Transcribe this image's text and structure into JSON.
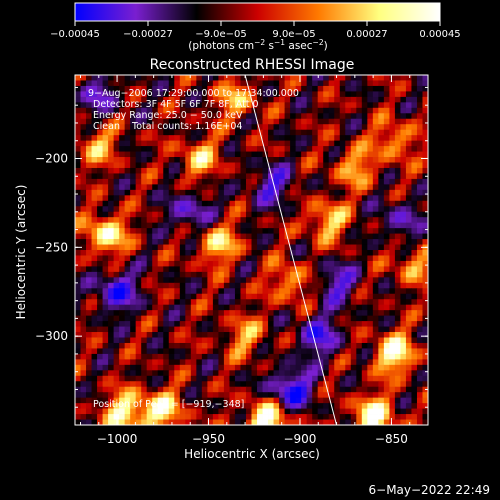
{
  "chart_data": {
    "type": "heatmap",
    "title": "Reconstructed RHESSI Image",
    "xlabel": "Heliocentric X (arcsec)",
    "ylabel": "Heliocentric Y (arcsec)",
    "xlim": [
      -1023,
      -830
    ],
    "ylim": [
      -350,
      -153
    ],
    "x_ticks": [
      -1000,
      -950,
      -900,
      -850
    ],
    "x_tick_labels": [
      "−1000",
      "−950",
      "−900",
      "−850"
    ],
    "y_ticks": [
      -200,
      -250,
      -300
    ],
    "y_tick_labels": [
      "−200",
      "−250",
      "−300"
    ],
    "colorbar": {
      "range": [
        -0.00045,
        0.00045
      ],
      "ticks": [
        -0.00045,
        -0.00027,
        -9e-05,
        9e-05,
        0.00027,
        0.00045
      ],
      "tick_labels": [
        "−0.00045",
        "−0.00027",
        "−9.0e−05",
        "9.0e−05",
        "0.00027",
        "0.00045"
      ],
      "units_prefix": "(photons cm",
      "units_sup1": "−2",
      "units_mid": " s",
      "units_sup2": "−1",
      "units_mid2": " asec",
      "units_sup3": "−2",
      "units_suffix": ")",
      "palette": [
        "#0000ff",
        "#7a1fd0",
        "#000000",
        "#cc0000",
        "#ff7a00",
        "#ffff80",
        "#ffffff"
      ]
    },
    "annotations": [
      "9−Aug−2006 17:29:00.000 to 17:34:00.000",
      "Detectors: 3F 4F 5F 6F 7F 8F, Att 0",
      "Energy Range: 25.0 − 50.0 keV",
      "Clean    Total counts: 1.16E+04"
    ],
    "peak_label": "Position of Peak = [−919,−348]",
    "peak": [
      -919,
      -348
    ],
    "limb_line": [
      [
        -930,
        -153
      ],
      [
        -880,
        -350
      ]
    ],
    "timestamp": "6−May−2022 22:49",
    "bright_sources": [
      {
        "x": -1011,
        "y": -193,
        "level": 0.55
      },
      {
        "x": -1006,
        "y": -243,
        "level": 0.85
      },
      {
        "x": -955,
        "y": -200,
        "level": 0.6
      },
      {
        "x": -945,
        "y": -248,
        "level": 0.7
      },
      {
        "x": -935,
        "y": -167,
        "level": 0.55
      },
      {
        "x": -930,
        "y": -300,
        "level": 0.5
      },
      {
        "x": -905,
        "y": -270,
        "level": 0.55
      },
      {
        "x": -885,
        "y": -235,
        "level": 0.65
      },
      {
        "x": -870,
        "y": -205,
        "level": 0.55
      },
      {
        "x": -848,
        "y": -190,
        "level": 0.55
      },
      {
        "x": -848,
        "y": -310,
        "level": 0.9
      },
      {
        "x": -860,
        "y": -345,
        "level": 0.9
      },
      {
        "x": -995,
        "y": -343,
        "level": 0.85
      },
      {
        "x": -975,
        "y": -342,
        "level": 0.75
      },
      {
        "x": -918,
        "y": -348,
        "level": 1.0
      },
      {
        "x": -838,
        "y": -260,
        "level": 0.5
      }
    ],
    "dark_sources": [
      {
        "x": -1000,
        "y": -275,
        "level": -0.8
      },
      {
        "x": -960,
        "y": -230,
        "level": -0.6
      },
      {
        "x": -905,
        "y": -330,
        "level": -0.9
      },
      {
        "x": -890,
        "y": -300,
        "level": -0.7
      },
      {
        "x": -915,
        "y": -215,
        "level": -0.6
      },
      {
        "x": -1010,
        "y": -165,
        "level": -0.5
      },
      {
        "x": -845,
        "y": -235,
        "level": -0.5
      },
      {
        "x": -880,
        "y": -270,
        "level": -0.6
      }
    ]
  }
}
